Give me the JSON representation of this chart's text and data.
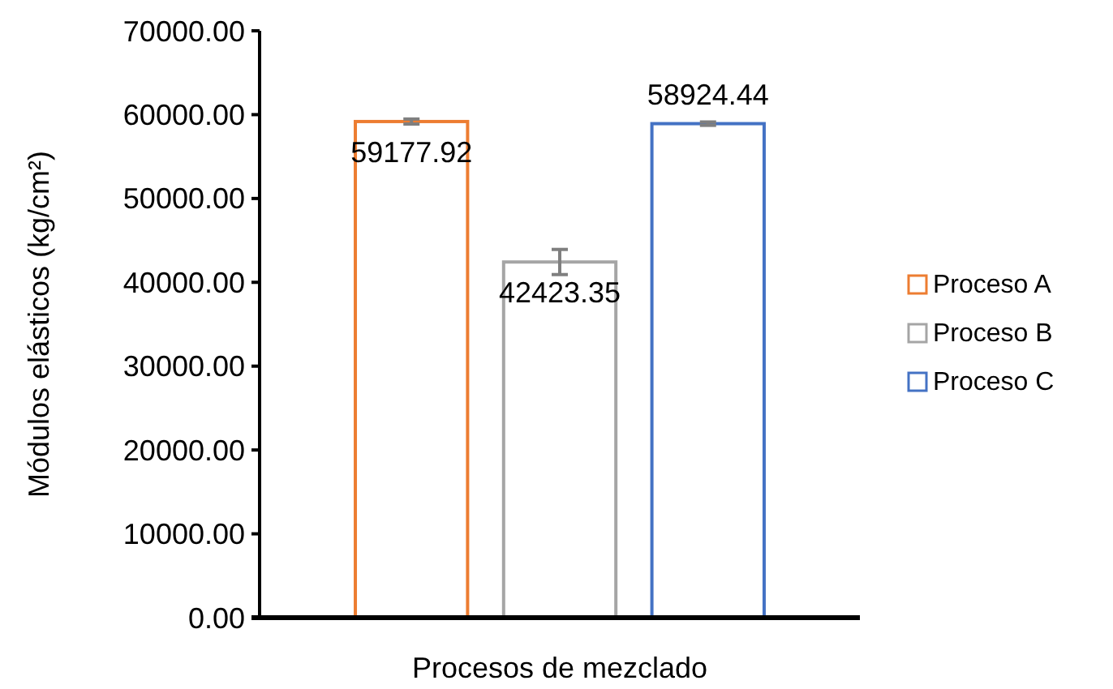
{
  "chart_data": {
    "type": "bar",
    "xlabel": "Procesos de mezclado",
    "ylabel": "Módulos elásticos (kg/cm²)",
    "categories": [
      null
    ],
    "series": [
      {
        "name": "Proceso A",
        "color": "#ed7d31",
        "values": [
          59177.92
        ],
        "errors": [
          300
        ]
      },
      {
        "name": "Proceso B",
        "color": "#a5a5a5",
        "values": [
          42423.35
        ],
        "errors": [
          1500
        ]
      },
      {
        "name": "Proceso C",
        "color": "#4472c4",
        "values": [
          58924.44
        ],
        "errors": [
          200
        ]
      }
    ],
    "ylim": [
      0,
      70000
    ],
    "yticks": [
      {
        "value": 0,
        "label": "0.00"
      },
      {
        "value": 10000,
        "label": "10000.00"
      },
      {
        "value": 20000,
        "label": "20000.00"
      },
      {
        "value": 30000,
        "label": "30000.00"
      },
      {
        "value": 40000,
        "label": "40000.00"
      },
      {
        "value": 50000,
        "label": "50000.00"
      },
      {
        "value": 60000,
        "label": "60000.00"
      },
      {
        "value": 70000,
        "label": "70000.00"
      }
    ],
    "data_labels": true,
    "legend": "right"
  }
}
